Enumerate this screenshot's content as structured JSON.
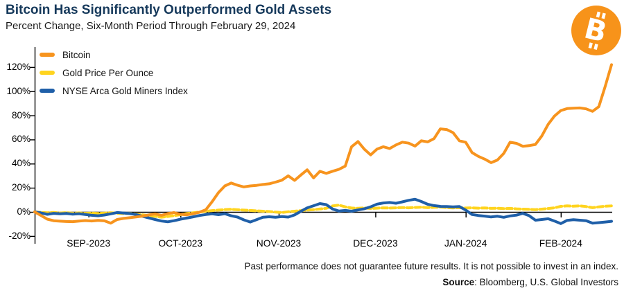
{
  "header": {
    "title": "Bitcoin Has Significantly Outperformed Gold Assets",
    "subtitle": "Percent Change, Six-Month Period Through February 29, 2024"
  },
  "logo": {
    "symbol": "B",
    "color": "#F7931A"
  },
  "legend": {
    "items": [
      {
        "label": "Bitcoin",
        "color": "#F7941E"
      },
      {
        "label": "Gold Price Per Ounce",
        "color": "#FFD41F"
      },
      {
        "label": "NYSE Arca Gold Miners Index",
        "color": "#1F5FA8"
      }
    ]
  },
  "footer": {
    "disclaimer": "Past performance does not guarantee future results. It is not possible to invest in an index.",
    "source_label": "Source",
    "source_rest": ": Bloomberg, U.S. Global Investors"
  },
  "chart_data": {
    "type": "line",
    "title": "Bitcoin Has Significantly Outperformed Gold Assets",
    "subtitle": "Percent Change, Six-Month Period Through February 29, 2024",
    "x_unit": "days since 2023-08-31 (period ends 2024-02-29)",
    "x_range": [
      0,
      182
    ],
    "ylim": [
      -20,
      120
    ],
    "grid": false,
    "legend_position": "top-left inside plot",
    "y_ticks": [
      {
        "v": 120,
        "label": "120%"
      },
      {
        "v": 100,
        "label": "100%"
      },
      {
        "v": 80,
        "label": "80%"
      },
      {
        "v": 60,
        "label": "60%"
      },
      {
        "v": 40,
        "label": "40%"
      },
      {
        "v": 20,
        "label": "20%"
      },
      {
        "v": 0,
        "label": "0%"
      },
      {
        "v": -20,
        "label": "-20%"
      }
    ],
    "x_ticks": [
      {
        "day": 17,
        "label": "SEP-2023"
      },
      {
        "day": 46,
        "label": "OCT-2023"
      },
      {
        "day": 77,
        "label": "NOV-2023"
      },
      {
        "day": 107.5,
        "label": "DEC-2023"
      },
      {
        "day": 136,
        "label": "JAN-2024"
      },
      {
        "day": 166,
        "label": "FEB-2024"
      }
    ],
    "series": [
      {
        "name": "Gold Price Per Ounce",
        "color": "#FFD41F",
        "dashed": true,
        "points": [
          [
            0,
            0
          ],
          [
            2,
            -0.4
          ],
          [
            4,
            -0.7
          ],
          [
            6,
            -0.4
          ],
          [
            8,
            -0.9
          ],
          [
            10,
            -0.6
          ],
          [
            12,
            -1.1
          ],
          [
            14,
            -0.8
          ],
          [
            16,
            -1.2
          ],
          [
            18,
            -0.9
          ],
          [
            20,
            -1.3
          ],
          [
            22,
            -1
          ],
          [
            24,
            -0.7
          ],
          [
            26,
            -1.1
          ],
          [
            28,
            -1.4
          ],
          [
            30,
            -1.2
          ],
          [
            32,
            -1.8
          ],
          [
            34,
            -2.4
          ],
          [
            36,
            -3.1
          ],
          [
            38,
            -3.7
          ],
          [
            40,
            -4.4
          ],
          [
            42,
            -3.8
          ],
          [
            44,
            -3.1
          ],
          [
            46,
            -2.3
          ],
          [
            48,
            -1.4
          ],
          [
            50,
            -0.7
          ],
          [
            52,
            -0.1
          ],
          [
            54,
            0.5
          ],
          [
            56,
            1.1
          ],
          [
            58,
            1.5
          ],
          [
            60,
            1.9
          ],
          [
            62,
            2.2
          ],
          [
            64,
            1.8
          ],
          [
            66,
            1.5
          ],
          [
            68,
            1.2
          ],
          [
            70,
            0.9
          ],
          [
            72,
            0.6
          ],
          [
            74,
            0.3
          ],
          [
            76,
            -0.2
          ],
          [
            78,
            -0.5
          ],
          [
            80,
            0.1
          ],
          [
            82,
            0.6
          ],
          [
            84,
            1.1
          ],
          [
            86,
            1.5
          ],
          [
            88,
            1.9
          ],
          [
            90,
            2.4
          ],
          [
            92,
            3
          ],
          [
            94,
            5
          ],
          [
            96,
            5.6
          ],
          [
            98,
            4.2
          ],
          [
            100,
            3.2
          ],
          [
            102,
            3
          ],
          [
            104,
            3.3
          ],
          [
            106,
            2.8
          ],
          [
            108,
            3.1
          ],
          [
            110,
            3.4
          ],
          [
            112,
            3.2
          ],
          [
            114,
            3.4
          ],
          [
            116,
            3.6
          ],
          [
            118,
            3.4
          ],
          [
            120,
            3.7
          ],
          [
            122,
            3.9
          ],
          [
            124,
            3.5
          ],
          [
            126,
            3.8
          ],
          [
            128,
            4
          ],
          [
            130,
            3.6
          ],
          [
            132,
            3.3
          ],
          [
            134,
            3.5
          ],
          [
            136,
            3.2
          ],
          [
            138,
            3.4
          ],
          [
            140,
            3.1
          ],
          [
            142,
            3.3
          ],
          [
            144,
            2.9
          ],
          [
            146,
            3.1
          ],
          [
            148,
            2.7
          ],
          [
            150,
            2.9
          ],
          [
            152,
            2.5
          ],
          [
            154,
            2.3
          ],
          [
            156,
            2.1
          ],
          [
            158,
            1.9
          ],
          [
            160,
            2.3
          ],
          [
            162,
            2.8
          ],
          [
            164,
            3.4
          ],
          [
            166,
            4.6
          ],
          [
            168,
            5
          ],
          [
            170,
            4.7
          ],
          [
            172,
            5
          ],
          [
            174,
            4.4
          ],
          [
            176,
            3.5
          ],
          [
            178,
            4.2
          ],
          [
            180,
            4.7
          ],
          [
            182,
            5
          ]
        ]
      },
      {
        "name": "NYSE Arca Gold Miners Index",
        "color": "#1F5FA8",
        "dashed": false,
        "points": [
          [
            0,
            0
          ],
          [
            2,
            -0.8
          ],
          [
            4,
            -2
          ],
          [
            6,
            -1.2
          ],
          [
            8,
            -1.6
          ],
          [
            10,
            -1.3
          ],
          [
            12,
            -1.9
          ],
          [
            14,
            -1.5
          ],
          [
            16,
            -2.2
          ],
          [
            18,
            -2.8
          ],
          [
            20,
            -3.2
          ],
          [
            22,
            -2.6
          ],
          [
            24,
            -1.6
          ],
          [
            26,
            -0.5
          ],
          [
            28,
            -0.9
          ],
          [
            30,
            -1.4
          ],
          [
            32,
            -2.2
          ],
          [
            34,
            -3.6
          ],
          [
            36,
            -5
          ],
          [
            38,
            -6.3
          ],
          [
            40,
            -7.6
          ],
          [
            42,
            -8.2
          ],
          [
            44,
            -7.3
          ],
          [
            46,
            -6
          ],
          [
            48,
            -5.1
          ],
          [
            50,
            -4.1
          ],
          [
            52,
            -3
          ],
          [
            54,
            -2.2
          ],
          [
            56,
            -1.6
          ],
          [
            58,
            -2.3
          ],
          [
            60,
            -1.5
          ],
          [
            62,
            -3.2
          ],
          [
            64,
            -4.3
          ],
          [
            66,
            -6.6
          ],
          [
            68,
            -8.4
          ],
          [
            70,
            -6.5
          ],
          [
            72,
            -4.5
          ],
          [
            74,
            -4
          ],
          [
            76,
            -4.5
          ],
          [
            78,
            -3.9
          ],
          [
            80,
            -4.3
          ],
          [
            82,
            -2.5
          ],
          [
            84,
            0.5
          ],
          [
            86,
            3.4
          ],
          [
            88,
            5.1
          ],
          [
            90,
            6.9
          ],
          [
            92,
            6
          ],
          [
            94,
            2.4
          ],
          [
            96,
            0.7
          ],
          [
            98,
            1.2
          ],
          [
            100,
            0.6
          ],
          [
            102,
            1.6
          ],
          [
            104,
            2.6
          ],
          [
            106,
            4.2
          ],
          [
            108,
            6.4
          ],
          [
            110,
            7.4
          ],
          [
            112,
            7.8
          ],
          [
            114,
            7.2
          ],
          [
            116,
            8.3
          ],
          [
            118,
            9.6
          ],
          [
            120,
            10.5
          ],
          [
            122,
            8.6
          ],
          [
            124,
            6.3
          ],
          [
            126,
            5.2
          ],
          [
            128,
            4.6
          ],
          [
            130,
            4.4
          ],
          [
            132,
            4.2
          ],
          [
            134,
            4.4
          ],
          [
            136,
            1.5
          ],
          [
            138,
            -2.2
          ],
          [
            140,
            -3
          ],
          [
            142,
            -3.5
          ],
          [
            144,
            -4.2
          ],
          [
            146,
            -3.6
          ],
          [
            148,
            -4.5
          ],
          [
            150,
            -3.3
          ],
          [
            152,
            -2.7
          ],
          [
            154,
            -1.2
          ],
          [
            156,
            -3.1
          ],
          [
            158,
            -6.9
          ],
          [
            160,
            -6.3
          ],
          [
            162,
            -5.7
          ],
          [
            164,
            -7.6
          ],
          [
            166,
            -9.7
          ],
          [
            168,
            -7
          ],
          [
            170,
            -6.4
          ],
          [
            172,
            -6.9
          ],
          [
            174,
            -7.3
          ],
          [
            176,
            -9.3
          ],
          [
            178,
            -8.9
          ],
          [
            180,
            -8.4
          ],
          [
            182,
            -7.8
          ]
        ]
      },
      {
        "name": "Bitcoin",
        "color": "#F7941E",
        "dashed": false,
        "points": [
          [
            0,
            0
          ],
          [
            2,
            -3
          ],
          [
            4,
            -6
          ],
          [
            6,
            -7.3
          ],
          [
            8,
            -7.7
          ],
          [
            10,
            -8
          ],
          [
            12,
            -8.1
          ],
          [
            14,
            -7.6
          ],
          [
            16,
            -7.2
          ],
          [
            18,
            -7.5
          ],
          [
            20,
            -7
          ],
          [
            22,
            -7.4
          ],
          [
            24,
            -9.3
          ],
          [
            26,
            -6.3
          ],
          [
            28,
            -5.4
          ],
          [
            30,
            -4.8
          ],
          [
            32,
            -4.2
          ],
          [
            34,
            -3.5
          ],
          [
            36,
            -2.5
          ],
          [
            38,
            -1.6
          ],
          [
            40,
            -2.9
          ],
          [
            42,
            -1.4
          ],
          [
            44,
            -0.6
          ],
          [
            46,
            -2
          ],
          [
            48,
            -2.4
          ],
          [
            50,
            -1.5
          ],
          [
            52,
            -0.3
          ],
          [
            54,
            1.8
          ],
          [
            56,
            8.5
          ],
          [
            58,
            16
          ],
          [
            60,
            21.5
          ],
          [
            62,
            23.9
          ],
          [
            64,
            22.1
          ],
          [
            66,
            20.7
          ],
          [
            68,
            21.5
          ],
          [
            70,
            22
          ],
          [
            72,
            22.7
          ],
          [
            74,
            23.3
          ],
          [
            76,
            24.7
          ],
          [
            78,
            26.3
          ],
          [
            80,
            29.9
          ],
          [
            82,
            26.1
          ],
          [
            84,
            30.6
          ],
          [
            86,
            34.9
          ],
          [
            88,
            28.2
          ],
          [
            90,
            33.6
          ],
          [
            92,
            31.9
          ],
          [
            94,
            33.7
          ],
          [
            96,
            35.3
          ],
          [
            98,
            38
          ],
          [
            100,
            54
          ],
          [
            102,
            58.3
          ],
          [
            104,
            52
          ],
          [
            106,
            47.2
          ],
          [
            108,
            52
          ],
          [
            110,
            54
          ],
          [
            112,
            52.5
          ],
          [
            114,
            55.5
          ],
          [
            116,
            57.8
          ],
          [
            118,
            57
          ],
          [
            120,
            54.5
          ],
          [
            122,
            58.9
          ],
          [
            124,
            58
          ],
          [
            126,
            60.7
          ],
          [
            128,
            68.8
          ],
          [
            130,
            68.2
          ],
          [
            132,
            65.7
          ],
          [
            134,
            58.9
          ],
          [
            136,
            57.7
          ],
          [
            138,
            49.1
          ],
          [
            140,
            46
          ],
          [
            142,
            43.7
          ],
          [
            144,
            40.8
          ],
          [
            146,
            43
          ],
          [
            148,
            48.5
          ],
          [
            150,
            57.7
          ],
          [
            152,
            56.8
          ],
          [
            154,
            54.4
          ],
          [
            156,
            54.9
          ],
          [
            158,
            55.9
          ],
          [
            160,
            62.9
          ],
          [
            162,
            72.5
          ],
          [
            164,
            79.4
          ],
          [
            166,
            84
          ],
          [
            168,
            85.6
          ],
          [
            170,
            85.9
          ],
          [
            172,
            86.1
          ],
          [
            174,
            85.4
          ],
          [
            176,
            83.3
          ],
          [
            178,
            87.2
          ],
          [
            180,
            104
          ],
          [
            182,
            122
          ]
        ]
      }
    ]
  }
}
